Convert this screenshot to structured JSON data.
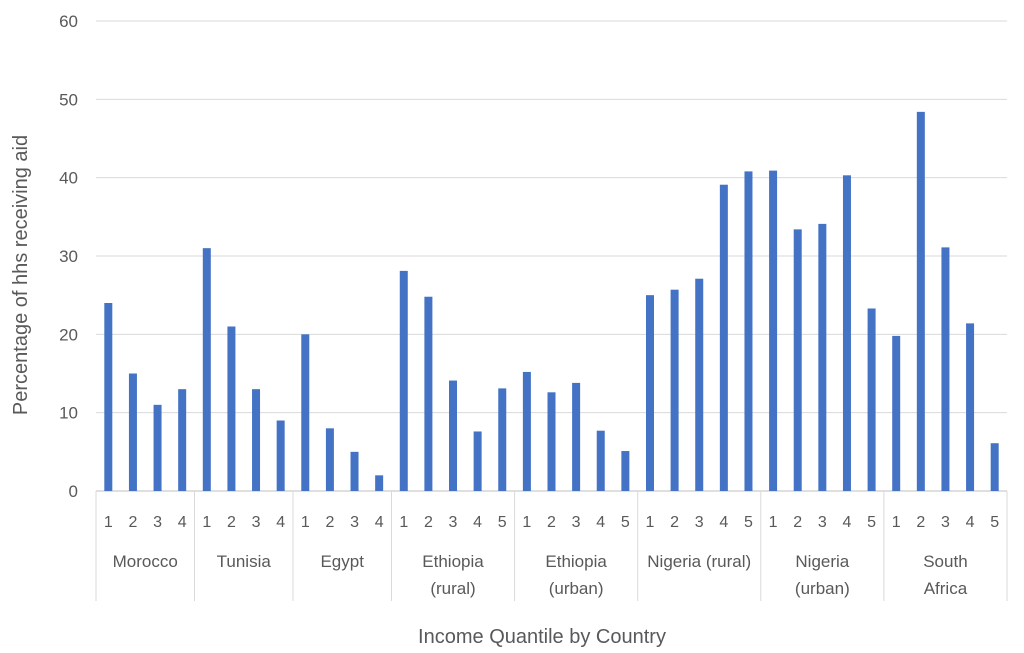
{
  "chart_data": {
    "type": "bar",
    "ylabel": "Percentage of hhs receiving aid",
    "xlabel": "Income Quantile by Country",
    "ylim": [
      0,
      60
    ],
    "yticks": [
      "0",
      "10",
      "20",
      "30",
      "40",
      "50",
      "60"
    ],
    "grid": true,
    "bar_color": "#4472C4",
    "groups": [
      {
        "name": [
          "Morocco"
        ],
        "quantiles": [
          "1",
          "2",
          "3",
          "4"
        ],
        "values": [
          24,
          15,
          11,
          13
        ]
      },
      {
        "name": [
          "Tunisia"
        ],
        "quantiles": [
          "1",
          "2",
          "3",
          "4"
        ],
        "values": [
          31,
          21,
          13,
          9
        ]
      },
      {
        "name": [
          "Egypt"
        ],
        "quantiles": [
          "1",
          "2",
          "3",
          "4"
        ],
        "values": [
          20,
          8,
          5,
          2
        ]
      },
      {
        "name": [
          "Ethiopia",
          "(rural)"
        ],
        "quantiles": [
          "1",
          "2",
          "3",
          "4",
          "5"
        ],
        "values": [
          28.1,
          24.8,
          14.1,
          7.6,
          13.1
        ]
      },
      {
        "name": [
          "Ethiopia",
          "(urban)"
        ],
        "quantiles": [
          "1",
          "2",
          "3",
          "4",
          "5"
        ],
        "values": [
          15.2,
          12.6,
          13.8,
          7.7,
          5.1
        ]
      },
      {
        "name": [
          "Nigeria (rural)"
        ],
        "quantiles": [
          "1",
          "2",
          "3",
          "4",
          "5"
        ],
        "values": [
          25,
          25.7,
          27.1,
          39.1,
          40.8
        ]
      },
      {
        "name": [
          "Nigeria",
          "(urban)"
        ],
        "quantiles": [
          "1",
          "2",
          "3",
          "4",
          "5"
        ],
        "values": [
          40.9,
          33.4,
          34.1,
          40.3,
          23.3
        ]
      },
      {
        "name": [
          "South",
          "Africa"
        ],
        "quantiles": [
          "1",
          "2",
          "3",
          "4",
          "5"
        ],
        "values": [
          19.8,
          48.4,
          31.1,
          21.4,
          6.1
        ]
      }
    ]
  }
}
